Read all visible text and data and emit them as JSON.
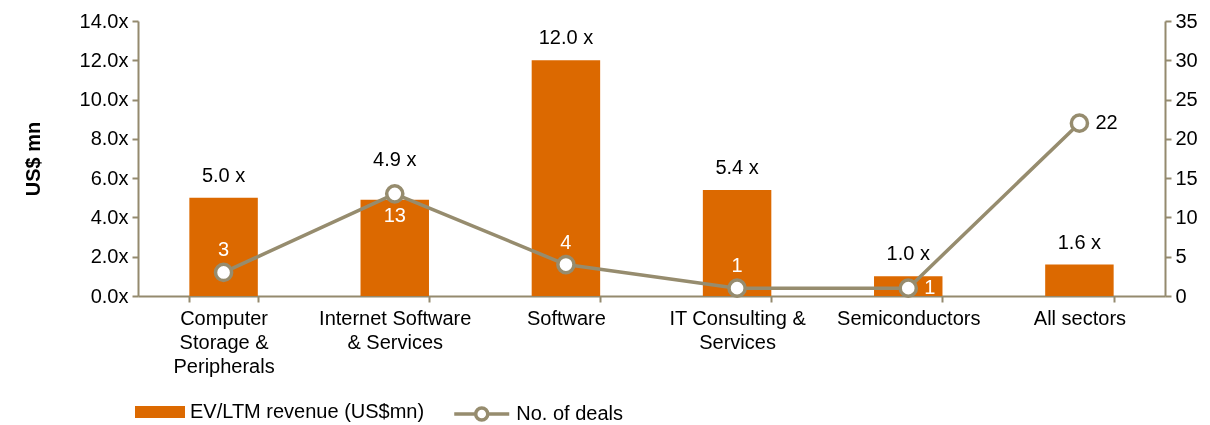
{
  "chart_data": {
    "type": "bar",
    "ylabel": "US$ mn",
    "categories": [
      "Computer Storage & Peripherals",
      "Internet Software & Services",
      "Software",
      "IT Consulting & Services",
      "Semiconductors",
      "All sectors"
    ],
    "series": [
      {
        "name": "EV/LTM revenue (US$mn)",
        "color": "#dc6900",
        "values": [
          5.0,
          4.9,
          12.0,
          5.4,
          1.0,
          1.6
        ],
        "value_labels": [
          "5.0 x",
          "4.9 x",
          "12.0 x",
          "5.4 x",
          "1.0 x",
          "1.6 x"
        ]
      },
      {
        "name": "No. of deals",
        "type": "line",
        "axis": "y2",
        "color": "#968c6e",
        "marker": "circle",
        "values": [
          3,
          13,
          4,
          1,
          1,
          22
        ],
        "value_labels": [
          "3",
          "13",
          "4",
          "1",
          "1",
          "22"
        ]
      }
    ],
    "ylim": [
      0,
      14
    ],
    "yticks": [
      {
        "value": 0,
        "label": "0.0x"
      },
      {
        "value": 2,
        "label": "2.0x"
      },
      {
        "value": 4,
        "label": "4.0x"
      },
      {
        "value": 6,
        "label": "6.0x"
      },
      {
        "value": 8,
        "label": "8.0x"
      },
      {
        "value": 10,
        "label": "10.0x"
      },
      {
        "value": 12,
        "label": "12.0x"
      },
      {
        "value": 14,
        "label": "14.0x"
      }
    ],
    "y2lim": [
      0,
      35
    ],
    "y2ticks": [
      0,
      5,
      10,
      15,
      20,
      25,
      30,
      35
    ],
    "legend": "bottom left"
  }
}
